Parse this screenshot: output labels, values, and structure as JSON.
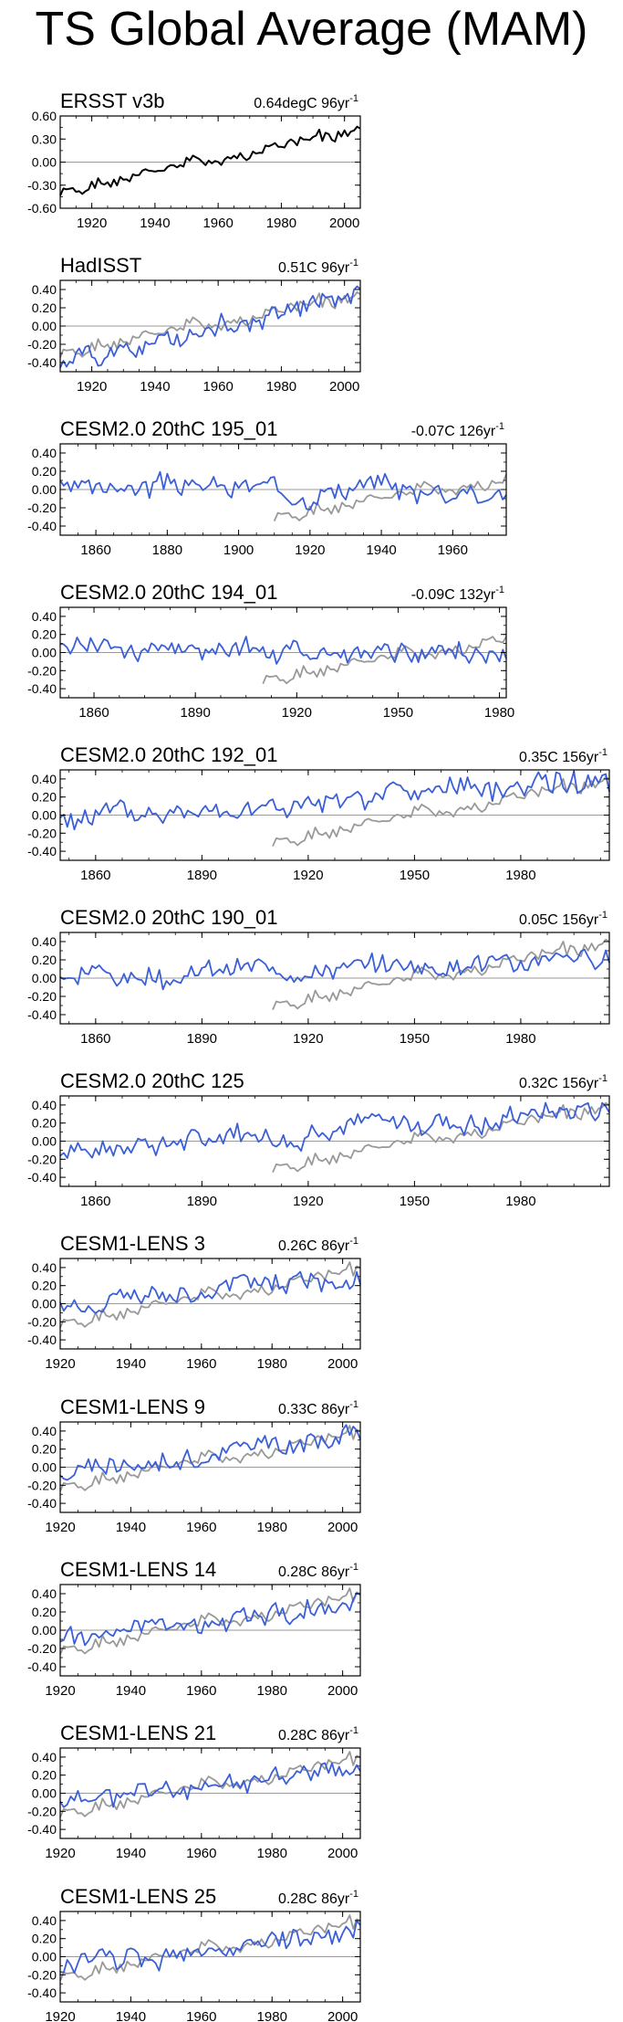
{
  "title": "TS Global Average (MAM)",
  "colors": {
    "obs": "#000000",
    "ref": "#999999",
    "model": "#3b5fd6",
    "zero": "#9a9a9a"
  },
  "chart_data": [
    {
      "type": "line",
      "name": "ersst",
      "title": "ERSST v3b",
      "trend": "0.64degC 96yr",
      "trend_sup": "-1",
      "xlim": [
        1910,
        2005
      ],
      "ylim": [
        -0.6,
        0.6
      ],
      "yticks": [
        -0.6,
        -0.3,
        0.0,
        0.3,
        0.6
      ],
      "ytick_labels": [
        "-0.60",
        "-0.30",
        "0.00",
        "0.30",
        "0.60"
      ],
      "xticks": [
        1920,
        1940,
        1960,
        1980,
        2000
      ],
      "series": [
        {
          "name": "ERSST v3b",
          "kind": "obs",
          "x_start": 1910,
          "x_end": 2005,
          "start": -0.42,
          "end": 0.44,
          "amp": 0.06,
          "seed": 1
        }
      ]
    },
    {
      "type": "line",
      "name": "hadisst",
      "title": "HadISST",
      "trend": "0.51C 96yr",
      "trend_sup": "-1",
      "xlim": [
        1910,
        2005
      ],
      "ylim": [
        -0.5,
        0.5
      ],
      "yticks": [
        -0.4,
        -0.2,
        0.0,
        0.2,
        0.4
      ],
      "ytick_labels": [
        "-0.40",
        "-0.20",
        "0.00",
        "0.20",
        "0.40"
      ],
      "xticks": [
        1920,
        1940,
        1960,
        1980,
        2000
      ],
      "series": [
        {
          "name": "ERSST v3b",
          "kind": "ref",
          "x_start": 1910,
          "x_end": 2005,
          "start": -0.33,
          "end": 0.35,
          "amp": 0.06,
          "seed": 1
        },
        {
          "name": "HadISST",
          "kind": "model",
          "x_start": 1910,
          "x_end": 2005,
          "start": -0.38,
          "end": 0.33,
          "amp": 0.09,
          "seed": 2
        }
      ]
    },
    {
      "type": "line",
      "name": "cesm2-195",
      "title": "CESM2.0 20thC 195_01",
      "trend": "-0.07C 126yr",
      "trend_sup": "-1",
      "xlim": [
        1850,
        1975
      ],
      "ylim": [
        -0.5,
        0.5
      ],
      "yticks": [
        -0.4,
        -0.2,
        0.0,
        0.2,
        0.4
      ],
      "ytick_labels": [
        "-0.40",
        "-0.20",
        "0.00",
        "0.20",
        "0.40"
      ],
      "xticks": [
        1860,
        1880,
        1900,
        1920,
        1940,
        1960
      ],
      "series": [
        {
          "name": "ERSST v3b",
          "kind": "ref",
          "x_start": 1910,
          "x_end": 1975,
          "start": -0.33,
          "end": 0.12,
          "amp": 0.06,
          "seed": 1
        },
        {
          "name": "CESM2.0 20thC 195_01",
          "kind": "model",
          "x_start": 1850,
          "x_end": 1975,
          "start": 0.05,
          "end": -0.02,
          "amp": 0.09,
          "seed": 3
        }
      ]
    },
    {
      "type": "line",
      "name": "cesm2-194",
      "title": "CESM2.0 20thC 194_01",
      "trend": "-0.09C 132yr",
      "trend_sup": "-1",
      "xlim": [
        1850,
        1982
      ],
      "ylim": [
        -0.5,
        0.5
      ],
      "yticks": [
        -0.4,
        -0.2,
        0.0,
        0.2,
        0.4
      ],
      "ytick_labels": [
        "-0.40",
        "-0.20",
        "0.00",
        "0.20",
        "0.40"
      ],
      "xticks": [
        1860,
        1890,
        1920,
        1950,
        1980
      ],
      "series": [
        {
          "name": "ERSST v3b",
          "kind": "ref",
          "x_start": 1910,
          "x_end": 1982,
          "start": -0.33,
          "end": 0.15,
          "amp": 0.06,
          "seed": 1
        },
        {
          "name": "CESM2.0 20thC 194_01",
          "kind": "model",
          "x_start": 1850,
          "x_end": 1982,
          "start": 0.1,
          "end": -0.05,
          "amp": 0.09,
          "seed": 4
        }
      ]
    },
    {
      "type": "line",
      "name": "cesm2-192",
      "title": "CESM2.0 20thC 192_01",
      "trend": "0.35C 156yr",
      "trend_sup": "-1",
      "xlim": [
        1850,
        2005
      ],
      "ylim": [
        -0.5,
        0.5
      ],
      "yticks": [
        -0.4,
        -0.2,
        0.0,
        0.2,
        0.4
      ],
      "ytick_labels": [
        "-0.40",
        "-0.20",
        "0.00",
        "0.20",
        "0.40"
      ],
      "xticks": [
        1860,
        1890,
        1920,
        1950,
        1980
      ],
      "series": [
        {
          "name": "ERSST v3b",
          "kind": "ref",
          "x_start": 1910,
          "x_end": 2005,
          "start": -0.33,
          "end": 0.4,
          "amp": 0.06,
          "seed": 1
        },
        {
          "name": "CESM2.0 20thC 192_01",
          "kind": "model",
          "x_start": 1850,
          "x_end": 2005,
          "start": -0.08,
          "end": 0.38,
          "amp": 0.1,
          "seed": 5
        }
      ]
    },
    {
      "type": "line",
      "name": "cesm2-190",
      "title": "CESM2.0 20thC 190_01",
      "trend": "0.05C 156yr",
      "trend_sup": "-1",
      "xlim": [
        1850,
        2005
      ],
      "ylim": [
        -0.5,
        0.5
      ],
      "yticks": [
        -0.4,
        -0.2,
        0.0,
        0.2,
        0.4
      ],
      "ytick_labels": [
        "-0.40",
        "-0.20",
        "0.00",
        "0.20",
        "0.40"
      ],
      "xticks": [
        1860,
        1890,
        1920,
        1950,
        1980
      ],
      "series": [
        {
          "name": "ERSST v3b",
          "kind": "ref",
          "x_start": 1910,
          "x_end": 2005,
          "start": -0.33,
          "end": 0.4,
          "amp": 0.06,
          "seed": 1
        },
        {
          "name": "CESM2.0 20thC 190_01",
          "kind": "model",
          "x_start": 1850,
          "x_end": 2005,
          "start": 0.02,
          "end": 0.2,
          "amp": 0.09,
          "seed": 6
        }
      ]
    },
    {
      "type": "line",
      "name": "cesm2-125",
      "title": "CESM2.0 20thC 125",
      "trend": "0.32C 156yr",
      "trend_sup": "-1",
      "xlim": [
        1850,
        2005
      ],
      "ylim": [
        -0.5,
        0.5
      ],
      "yticks": [
        -0.4,
        -0.2,
        0.0,
        0.2,
        0.4
      ],
      "ytick_labels": [
        "-0.40",
        "-0.20",
        "0.00",
        "0.20",
        "0.40"
      ],
      "xticks": [
        1860,
        1890,
        1920,
        1950,
        1980
      ],
      "series": [
        {
          "name": "ERSST v3b",
          "kind": "ref",
          "x_start": 1910,
          "x_end": 2005,
          "start": -0.33,
          "end": 0.4,
          "amp": 0.06,
          "seed": 1
        },
        {
          "name": "CESM2.0 20thC 125",
          "kind": "model",
          "x_start": 1850,
          "x_end": 2005,
          "start": -0.1,
          "end": 0.35,
          "amp": 0.09,
          "seed": 7
        }
      ]
    },
    {
      "type": "line",
      "name": "lens-3",
      "title": "CESM1-LENS 3",
      "trend": "0.26C 86yr",
      "trend_sup": "-1",
      "xlim": [
        1920,
        2005
      ],
      "ylim": [
        -0.5,
        0.5
      ],
      "yticks": [
        -0.4,
        -0.2,
        0.0,
        0.2,
        0.4
      ],
      "ytick_labels": [
        "-0.40",
        "-0.20",
        "0.00",
        "0.20",
        "0.40"
      ],
      "xticks": [
        1920,
        1940,
        1960,
        1980,
        2000
      ],
      "series": [
        {
          "name": "ERSST v3b",
          "kind": "ref",
          "x_start": 1920,
          "x_end": 2005,
          "start": -0.25,
          "end": 0.38,
          "amp": 0.06,
          "seed": 1
        },
        {
          "name": "CESM1-LENS 3",
          "kind": "model",
          "x_start": 1920,
          "x_end": 2005,
          "start": -0.05,
          "end": 0.32,
          "amp": 0.09,
          "seed": 8
        }
      ]
    },
    {
      "type": "line",
      "name": "lens-9",
      "title": "CESM1-LENS 9",
      "trend": "0.33C 86yr",
      "trend_sup": "-1",
      "xlim": [
        1920,
        2005
      ],
      "ylim": [
        -0.5,
        0.5
      ],
      "yticks": [
        -0.4,
        -0.2,
        0.0,
        0.2,
        0.4
      ],
      "ytick_labels": [
        "-0.40",
        "-0.20",
        "0.00",
        "0.20",
        "0.40"
      ],
      "xticks": [
        1920,
        1940,
        1960,
        1980,
        2000
      ],
      "series": [
        {
          "name": "ERSST v3b",
          "kind": "ref",
          "x_start": 1920,
          "x_end": 2005,
          "start": -0.25,
          "end": 0.38,
          "amp": 0.06,
          "seed": 1
        },
        {
          "name": "CESM1-LENS 9",
          "kind": "model",
          "x_start": 1920,
          "x_end": 2005,
          "start": -0.1,
          "end": 0.38,
          "amp": 0.09,
          "seed": 9
        }
      ]
    },
    {
      "type": "line",
      "name": "lens-14",
      "title": "CESM1-LENS 14",
      "trend": "0.28C 86yr",
      "trend_sup": "-1",
      "xlim": [
        1920,
        2005
      ],
      "ylim": [
        -0.5,
        0.5
      ],
      "yticks": [
        -0.4,
        -0.2,
        0.0,
        0.2,
        0.4
      ],
      "ytick_labels": [
        "-0.40",
        "-0.20",
        "0.00",
        "0.20",
        "0.40"
      ],
      "xticks": [
        1920,
        1940,
        1960,
        1980,
        2000
      ],
      "series": [
        {
          "name": "ERSST v3b",
          "kind": "ref",
          "x_start": 1920,
          "x_end": 2005,
          "start": -0.25,
          "end": 0.38,
          "amp": 0.06,
          "seed": 1
        },
        {
          "name": "CESM1-LENS 14",
          "kind": "model",
          "x_start": 1920,
          "x_end": 2005,
          "start": -0.08,
          "end": 0.3,
          "amp": 0.09,
          "seed": 10
        }
      ]
    },
    {
      "type": "line",
      "name": "lens-21",
      "title": "CESM1-LENS 21",
      "trend": "0.28C 86yr",
      "trend_sup": "-1",
      "xlim": [
        1920,
        2005
      ],
      "ylim": [
        -0.5,
        0.5
      ],
      "yticks": [
        -0.4,
        -0.2,
        0.0,
        0.2,
        0.4
      ],
      "ytick_labels": [
        "-0.40",
        "-0.20",
        "0.00",
        "0.20",
        "0.40"
      ],
      "xticks": [
        1920,
        1940,
        1960,
        1980,
        2000
      ],
      "series": [
        {
          "name": "ERSST v3b",
          "kind": "ref",
          "x_start": 1920,
          "x_end": 2005,
          "start": -0.25,
          "end": 0.38,
          "amp": 0.06,
          "seed": 1
        },
        {
          "name": "CESM1-LENS 21",
          "kind": "model",
          "x_start": 1920,
          "x_end": 2005,
          "start": -0.1,
          "end": 0.28,
          "amp": 0.09,
          "seed": 11
        }
      ]
    },
    {
      "type": "line",
      "name": "lens-25",
      "title": "CESM1-LENS 25",
      "trend": "0.28C 86yr",
      "trend_sup": "-1",
      "xlim": [
        1920,
        2005
      ],
      "ylim": [
        -0.5,
        0.5
      ],
      "yticks": [
        -0.4,
        -0.2,
        0.0,
        0.2,
        0.4
      ],
      "ytick_labels": [
        "-0.40",
        "-0.20",
        "0.00",
        "0.20",
        "0.40"
      ],
      "xticks": [
        1920,
        1940,
        1960,
        1980,
        2000
      ],
      "series": [
        {
          "name": "ERSST v3b",
          "kind": "ref",
          "x_start": 1920,
          "x_end": 2005,
          "start": -0.25,
          "end": 0.38,
          "amp": 0.06,
          "seed": 1
        },
        {
          "name": "CESM1-LENS 25",
          "kind": "model",
          "x_start": 1920,
          "x_end": 2005,
          "start": -0.12,
          "end": 0.3,
          "amp": 0.09,
          "seed": 12
        }
      ]
    }
  ]
}
